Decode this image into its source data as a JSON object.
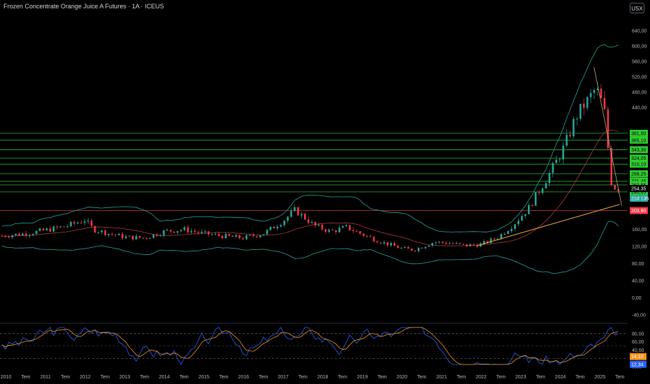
{
  "header": {
    "title": "Frozen Concentrate Orange Juice A Futures · 1A · ICEUS",
    "currency": "USX"
  },
  "chart_data": {
    "type": "candlestick",
    "price_axis": {
      "ticks": [
        "640,00",
        "600,00",
        "560,00",
        "520,00",
        "480,00",
        "440,00",
        "200,00",
        "160,00",
        "120,00",
        "80,00",
        "40,00",
        "0,00",
        "-40,00"
      ],
      "tick_values": [
        640,
        600,
        560,
        520,
        480,
        440,
        200,
        160,
        120,
        80,
        40,
        0,
        -40
      ],
      "range": [
        -56,
        676
      ]
    },
    "time_axis": {
      "labels": [
        "2010",
        "Tem",
        "2011",
        "Tem",
        "2012",
        "Tem",
        "2013",
        "Tem",
        "2014",
        "Tem",
        "2015",
        "Tem",
        "2016",
        "Tem",
        "2017",
        "Tem",
        "2018",
        "Tem",
        "2019",
        "Tem",
        "2020",
        "Tem",
        "2021",
        "Tem",
        "2022",
        "Tem",
        "2023",
        "Tem",
        "2024",
        "Tem",
        "2025",
        "Tem"
      ],
      "range": [
        2009.85,
        2025.7
      ]
    },
    "horizontal_levels": [
      {
        "label": "381,00",
        "value": 381,
        "color": "#2ecc40"
      },
      {
        "label": "365,10",
        "value": 365.1,
        "color": "#2ecc40"
      },
      {
        "label": "343,30",
        "value": 343.3,
        "color": "#2ecc40"
      },
      {
        "label": "324,05",
        "value": 324.05,
        "color": "#2ecc40"
      },
      {
        "label": "310,10",
        "value": 310.1,
        "color": "#2ecc40"
      },
      {
        "label": "288,25",
        "value": 288.25,
        "color": "#2ecc40"
      },
      {
        "label": "271,45",
        "value": 271.45,
        "color": "#2ecc40"
      },
      {
        "label": "262,55",
        "value": 262.55,
        "color": "#2ecc40"
      },
      {
        "label": "246,65",
        "value": 246.65,
        "color": "#2ecc40"
      },
      {
        "label": "203,80",
        "value": 203.8,
        "color": "#f23645"
      }
    ],
    "last_price": {
      "label": "254,35",
      "value": 254.35
    },
    "countdown": {
      "label": "21d 13h",
      "value": 232
    },
    "trendline": {
      "from": {
        "x": 2021.9,
        "y": 122
      },
      "to": {
        "x": 2025.5,
        "y": 218
      },
      "color": "#e8a33d"
    },
    "series": [
      {
        "name": "price",
        "x": [
          2009.9,
          2010.5,
          2011.0,
          2011.5,
          2012.0,
          2012.2,
          2012.6,
          2013.0,
          2013.5,
          2014.0,
          2014.5,
          2015.0,
          2015.5,
          2016.0,
          2016.5,
          2017.0,
          2017.3,
          2017.8,
          2018.2,
          2018.6,
          2019.0,
          2019.5,
          2020.0,
          2020.3,
          2020.8,
          2021.2,
          2021.6,
          2022.0,
          2022.4,
          2022.8,
          2023.2,
          2023.5,
          2023.8,
          2024.1,
          2024.4,
          2024.7,
          2024.9,
          2025.1,
          2025.3,
          2025.5
        ],
        "y": [
          145,
          150,
          158,
          167,
          182,
          160,
          150,
          142,
          140,
          155,
          160,
          150,
          144,
          140,
          150,
          180,
          205,
          168,
          155,
          165,
          148,
          130,
          115,
          112,
          130,
          128,
          122,
          125,
          140,
          170,
          210,
          255,
          300,
          350,
          420,
          460,
          490,
          440,
          260,
          254
        ]
      },
      {
        "name": "bollinger-upper",
        "color": "#26a69a"
      },
      {
        "name": "bollinger-lower",
        "color": "#26a69a"
      },
      {
        "name": "moving-average",
        "color": "#b33a3a"
      }
    ],
    "oscillator": {
      "ticks": [
        "80,00",
        "60,00",
        "40,00",
        "20,00",
        "0,00"
      ],
      "tick_values": [
        80,
        60,
        40,
        20,
        0
      ],
      "range": [
        -5,
        100
      ],
      "series": [
        {
          "name": "%K",
          "label": "12,34",
          "last": 12.34,
          "color": "#2962ff"
        },
        {
          "name": "%D",
          "label": "14,10",
          "last": 14.1,
          "color": "#f7931a"
        }
      ]
    }
  }
}
